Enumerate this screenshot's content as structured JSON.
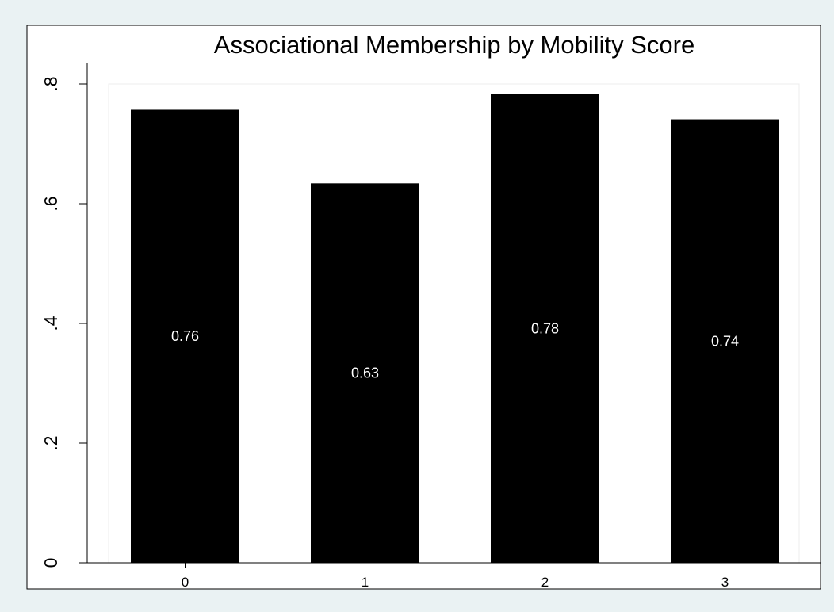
{
  "colors": {
    "page_background": "#eaf2f3",
    "plot_background": "#ffffff",
    "bar_fill": "#000000",
    "bar_label": "#ffffff",
    "axis": "#000000"
  },
  "chart_data": {
    "type": "bar",
    "title": "Associational Membership by Mobility Score",
    "xlabel": "",
    "ylabel": "",
    "categories": [
      "0",
      "1",
      "2",
      "3"
    ],
    "values": [
      0.757,
      0.634,
      0.783,
      0.741
    ],
    "value_labels": [
      "0.76",
      "0.63",
      "0.78",
      "0.74"
    ],
    "ylim": [
      0,
      0.8
    ],
    "yticks": [
      0,
      0.2,
      0.4,
      0.6,
      0.8
    ],
    "ytick_labels": [
      "0",
      ".2",
      ".4",
      ".6",
      ".8"
    ],
    "grid": false,
    "legend": "none",
    "value_label_position": "bar-middle"
  }
}
